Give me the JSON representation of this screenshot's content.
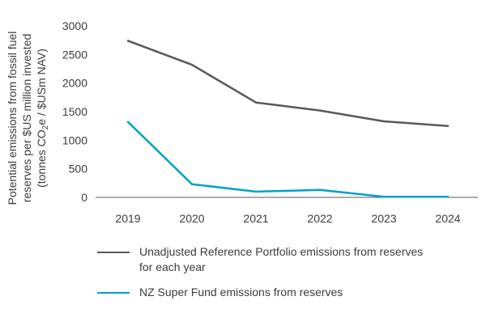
{
  "chart_data": {
    "type": "line",
    "title": "",
    "xlabel": "",
    "ylabel": {
      "lines": [
        "Potential emissions from fossil fuel",
        "reserves per $US million invested",
        "(tonnes CO",
        "2",
        "e / $USm NAV)"
      ]
    },
    "x": [
      "2019",
      "2020",
      "2021",
      "2022",
      "2023",
      "2024"
    ],
    "ylim": [
      0,
      3000
    ],
    "yticks": [
      "0",
      "500",
      "1000",
      "1500",
      "2000",
      "2500",
      "3000"
    ],
    "grid": false,
    "legend_position": "bottom",
    "series": [
      {
        "name": "Unadjusted Reference Portfolio emissions from reserves for each year",
        "color": "#595959",
        "values": [
          2740,
          2320,
          1660,
          1520,
          1330,
          1250
        ]
      },
      {
        "name": "NZ Super Fund emissions from reserves",
        "color": "#00a3c4",
        "values": [
          1320,
          230,
          100,
          130,
          10,
          10
        ]
      }
    ]
  }
}
